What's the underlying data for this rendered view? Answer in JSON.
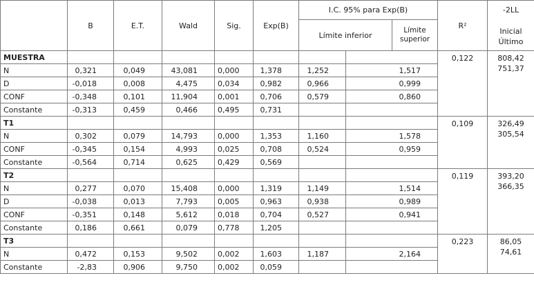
{
  "header": {
    "columns": [
      "B",
      "E.T.",
      "Wald",
      "Sig.",
      "Exp(B)"
    ],
    "ci_title": "I.C. 95% para Exp(B)",
    "ci_lower": "Límite inferior",
    "ci_upper": "Límite superior",
    "r2": "R²",
    "ll_title": "-2LL",
    "ll_initial": "Inicial",
    "ll_final": "Último"
  },
  "groups": [
    {
      "name": "MUESTRA",
      "r2": "0,122",
      "ll_initial": "808,42",
      "ll_final": "751,37",
      "rows": [
        [
          "N",
          "0,321",
          "0,049",
          "43,081",
          "0,000",
          "1,378",
          "1,252",
          "1,517"
        ],
        [
          "D",
          "-0,018",
          "0,008",
          "4,475",
          "0,034",
          "0,982",
          "0,966",
          "0,999"
        ],
        [
          "CONF",
          "-0,348",
          "0,101",
          "11,904",
          "0,001",
          "0,706",
          "0,579",
          "0,860"
        ],
        [
          "Constante",
          "-0,313",
          "0,459",
          "0,466",
          "0,495",
          "0,731"
        ]
      ]
    },
    {
      "name": "T1",
      "r2": "0,109",
      "ll_initial": "326,49",
      "ll_final": "305,54",
      "rows": [
        [
          "N",
          "0,302",
          "0,079",
          "14,793",
          "0,000",
          "1,353",
          "1,160",
          "1,578"
        ],
        [
          "CONF",
          "-0,345",
          "0,154",
          "4,993",
          "0,025",
          "0,708",
          "0,524",
          "0,959"
        ],
        [
          "Constante",
          "-0,564",
          "0,714",
          "0,625",
          "0,429",
          "0,569"
        ]
      ]
    },
    {
      "name": "T2",
      "r2": "0,119",
      "ll_initial": "393,20",
      "ll_final": "366,35",
      "rows": [
        [
          "N",
          "0,277",
          "0,070",
          "15,408",
          "0,000",
          "1,319",
          "1,149",
          "1,514"
        ],
        [
          "D",
          "-0,038",
          "0,013",
          "7,793",
          "0,005",
          "0,963",
          "0,938",
          "0,989"
        ],
        [
          "CONF",
          "-0,351",
          "0,148",
          "5,612",
          "0,018",
          "0,704",
          "0,527",
          "0,941"
        ],
        [
          "Constante",
          "0,186",
          "0,661",
          "0,079",
          "0,778",
          "1,205"
        ]
      ]
    },
    {
      "name": "T3",
      "r2": "0,223",
      "ll_initial": "86,05",
      "ll_final": "74,61",
      "rows": [
        [
          "N",
          "0,472",
          "0,153",
          "9,502",
          "0,002",
          "1,603",
          "1,187",
          "2,164"
        ],
        [
          "Constante",
          "-2,83",
          "0,906",
          "9,750",
          "0,002",
          "0,059"
        ]
      ]
    }
  ]
}
